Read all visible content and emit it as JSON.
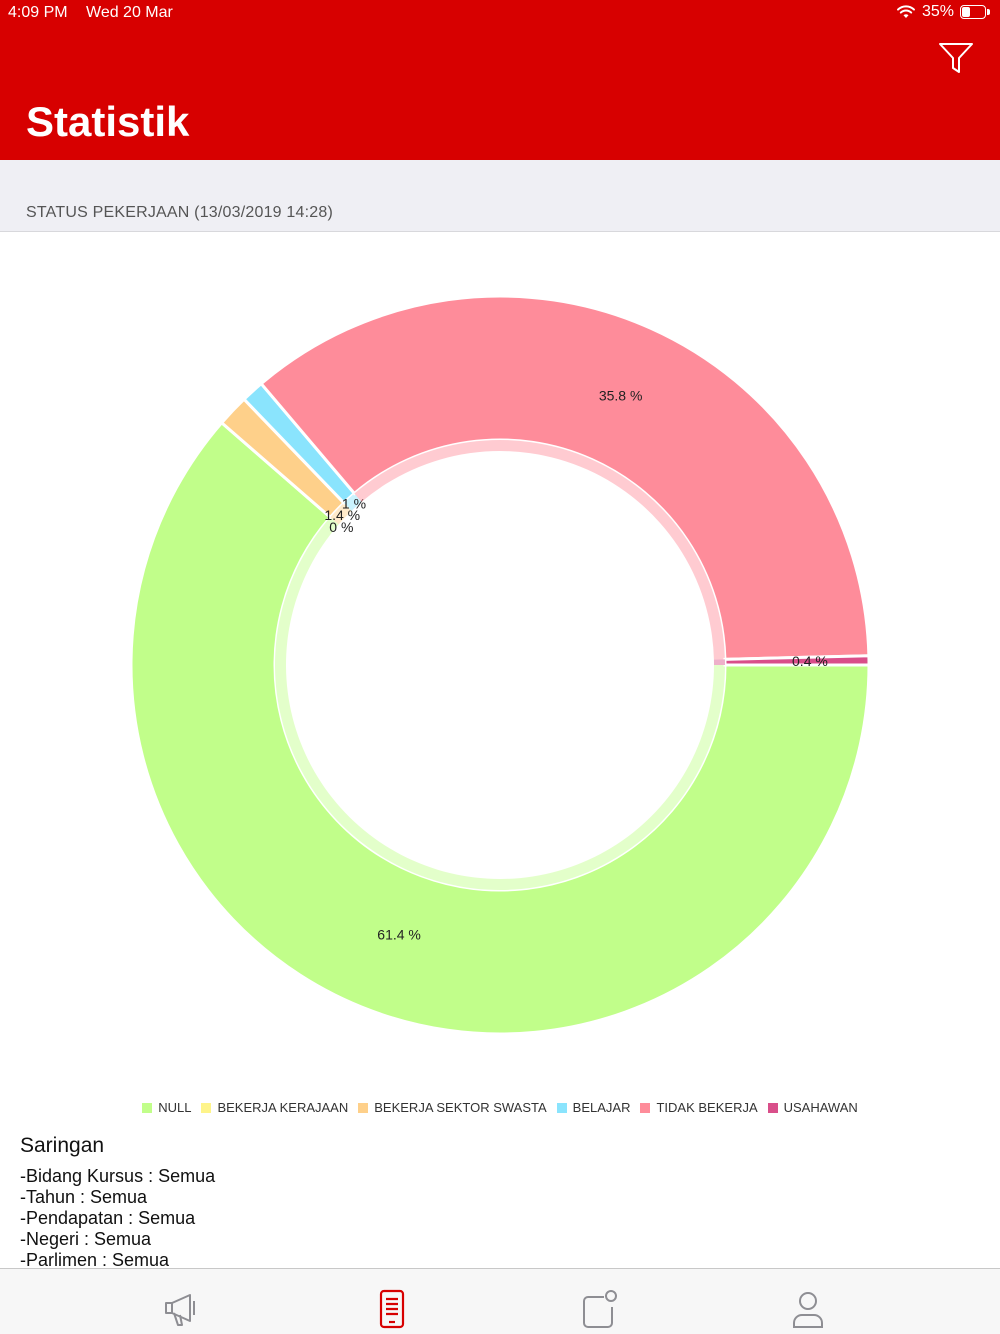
{
  "status_bar": {
    "time": "4:09 PM",
    "date": "Wed 20 Mar",
    "battery": "35%",
    "battery_level": 0.35,
    "wifi_icon": "wifi-icon"
  },
  "header": {
    "title": "Statistik",
    "filter_icon": "filter-icon",
    "background": "#d70000"
  },
  "section": {
    "title": "STATUS PEKERJAAN (13/03/2019 14:28)"
  },
  "chart_data": {
    "type": "pie",
    "donut": true,
    "title": "",
    "slices": [
      {
        "name": "NULL",
        "value": 61.4,
        "label": "61.4 %",
        "color": "#c1fe8a"
      },
      {
        "name": "BEKERJA KERAJAAN",
        "value": 0.0,
        "label": "0 %",
        "color": "#fef48a"
      },
      {
        "name": "BEKERJA SEKTOR SWASTA",
        "value": 1.4,
        "label": "1.4 %",
        "color": "#fed08a"
      },
      {
        "name": "BELAJAR",
        "value": 1.0,
        "label": "1 %",
        "color": "#8ae4fd"
      },
      {
        "name": "TIDAK BEKERJA",
        "value": 35.8,
        "label": "35.8 %",
        "color": "#fe8c9a"
      },
      {
        "name": "USAHAWAN",
        "value": 0.4,
        "label": "0.4 %",
        "color": "#d94f8a"
      }
    ],
    "legend_position": "bottom"
  },
  "filters": {
    "title": "Saringan",
    "lines": [
      "-Bidang Kursus : Semua",
      "-Tahun : Semua",
      "-Pendapatan : Semua",
      "-Negeri : Semua",
      "-Parlimen : Semua"
    ]
  },
  "tabbar": {
    "tabs": [
      {
        "icon": "megaphone-icon",
        "active": false
      },
      {
        "icon": "document-list-icon",
        "active": true
      },
      {
        "icon": "notification-square-icon",
        "active": false
      },
      {
        "icon": "user-icon",
        "active": false
      }
    ],
    "active_color": "#d70000",
    "inactive_color": "#8e8e93"
  }
}
